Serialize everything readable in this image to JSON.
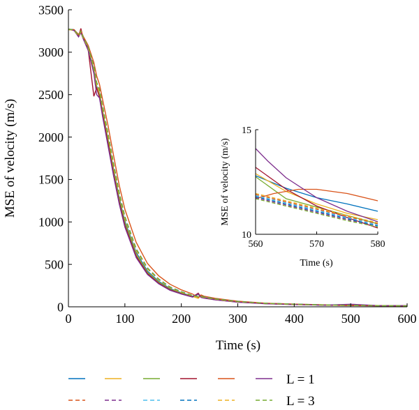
{
  "chart_data": [
    {
      "type": "line",
      "xlabel": "Time (s)",
      "ylabel": "MSE of velocity (m/s)",
      "xlim": [
        0,
        600
      ],
      "ylim": [
        0,
        3500
      ],
      "xticks": [
        "0",
        "100",
        "200",
        "300",
        "400",
        "500",
        "600"
      ],
      "yticks": [
        "0",
        "500",
        "1000",
        "1500",
        "2000",
        "2500",
        "3000",
        "3500"
      ],
      "grid": false,
      "legend_position": "bottom",
      "legend_rows": [
        {
          "label": "L = 1",
          "dashed": false,
          "colors": [
            "#0072BD",
            "#EDB120",
            "#77AC30",
            "#A2142F",
            "#D95319",
            "#7E2F8E"
          ]
        },
        {
          "label": "L = 3",
          "dashed": true,
          "colors": [
            "#D95319",
            "#7E2F8E",
            "#4DBEEE",
            "#0072BD",
            "#EDB120",
            "#77AC30"
          ]
        }
      ],
      "series": [
        {
          "color": "#0072BD",
          "dashed": false,
          "x": [
            0,
            10,
            18,
            22,
            26,
            35,
            45,
            50,
            55,
            60,
            70,
            80,
            90,
            100,
            120,
            140,
            160,
            180,
            200,
            220,
            230,
            235,
            240,
            260,
            280,
            300,
            350,
            400,
            450,
            500,
            550,
            600
          ],
          "y": [
            3270,
            3265,
            3200,
            3250,
            3180,
            3050,
            2800,
            2600,
            2520,
            2330,
            1980,
            1620,
            1280,
            1010,
            640,
            420,
            300,
            215,
            165,
            125,
            150,
            118,
            110,
            90,
            75,
            60,
            40,
            30,
            22,
            17,
            13,
            12
          ]
        },
        {
          "color": "#EDB120",
          "dashed": false,
          "x": [
            0,
            10,
            18,
            22,
            26,
            35,
            45,
            50,
            55,
            60,
            70,
            80,
            90,
            100,
            120,
            140,
            160,
            180,
            200,
            220,
            230,
            235,
            240,
            260,
            280,
            300,
            350,
            400,
            450,
            500,
            550,
            600
          ],
          "y": [
            3265,
            3260,
            3190,
            3240,
            3170,
            3040,
            2790,
            2590,
            2510,
            2320,
            1970,
            1600,
            1260,
            990,
            620,
            405,
            290,
            208,
            160,
            122,
            100,
            135,
            108,
            88,
            72,
            58,
            38,
            29,
            21,
            16,
            13,
            11
          ]
        },
        {
          "color": "#77AC30",
          "dashed": false,
          "x": [
            0,
            10,
            18,
            22,
            26,
            35,
            45,
            50,
            55,
            60,
            70,
            80,
            90,
            100,
            120,
            140,
            160,
            180,
            200,
            220,
            230,
            235,
            240,
            260,
            280,
            300,
            350,
            400,
            450,
            500,
            550,
            600
          ],
          "y": [
            3270,
            3262,
            3195,
            3245,
            3175,
            3045,
            2770,
            2570,
            2490,
            2300,
            1950,
            1580,
            1250,
            980,
            610,
            400,
            285,
            205,
            158,
            120,
            145,
            115,
            106,
            86,
            70,
            57,
            37,
            28,
            20,
            16,
            12,
            11
          ]
        },
        {
          "color": "#A2142F",
          "dashed": false,
          "x": [
            0,
            10,
            18,
            22,
            26,
            35,
            45,
            50,
            55,
            60,
            70,
            80,
            90,
            100,
            120,
            140,
            160,
            180,
            200,
            220,
            230,
            235,
            240,
            260,
            280,
            300,
            350,
            400,
            450,
            500,
            550,
            600
          ],
          "y": [
            3268,
            3258,
            3185,
            3280,
            3165,
            3030,
            2480,
            2580,
            2470,
            2280,
            1930,
            1560,
            1230,
            960,
            595,
            390,
            278,
            200,
            154,
            117,
            160,
            112,
            104,
            84,
            69,
            55,
            36,
            27,
            20,
            15,
            12,
            10
          ]
        },
        {
          "color": "#D95319",
          "dashed": false,
          "x": [
            0,
            10,
            18,
            22,
            26,
            35,
            45,
            50,
            55,
            60,
            70,
            80,
            90,
            100,
            120,
            140,
            160,
            180,
            200,
            220,
            230,
            235,
            240,
            260,
            280,
            300,
            350,
            400,
            450,
            500,
            550,
            600
          ],
          "y": [
            3272,
            3266,
            3210,
            3255,
            3190,
            3080,
            2880,
            2720,
            2620,
            2460,
            2140,
            1780,
            1430,
            1150,
            760,
            510,
            365,
            265,
            200,
            150,
            110,
            140,
            125,
            100,
            82,
            66,
            43,
            32,
            24,
            18,
            14,
            12
          ]
        },
        {
          "color": "#7E2F8E",
          "dashed": false,
          "x": [
            0,
            10,
            18,
            22,
            26,
            35,
            45,
            50,
            55,
            60,
            70,
            80,
            90,
            100,
            120,
            140,
            160,
            180,
            200,
            220,
            230,
            235,
            240,
            260,
            280,
            300,
            350,
            400,
            450,
            500,
            550,
            600
          ],
          "y": [
            3270,
            3255,
            3180,
            3230,
            3160,
            3020,
            2750,
            2500,
            2460,
            2260,
            1900,
            1540,
            1210,
            940,
            580,
            380,
            270,
            195,
            150,
            114,
            150,
            110,
            102,
            82,
            68,
            54,
            35,
            26,
            19,
            30,
            14,
            13
          ]
        },
        {
          "color": "#D95319",
          "dashed": true,
          "x": [
            0,
            10,
            18,
            22,
            26,
            35,
            45,
            50,
            55,
            60,
            70,
            80,
            90,
            100,
            120,
            140,
            160,
            180,
            200,
            220,
            230,
            235,
            240,
            260,
            280,
            300,
            350,
            400,
            450,
            500,
            550,
            600
          ],
          "y": [
            3270,
            3263,
            3195,
            3245,
            3178,
            3060,
            2830,
            2640,
            2560,
            2380,
            2040,
            1680,
            1340,
            1060,
            680,
            455,
            325,
            232,
            176,
            133,
            118,
            125,
            116,
            93,
            77,
            62,
            41,
            30,
            22,
            17,
            13,
            11
          ]
        },
        {
          "color": "#7E2F8E",
          "dashed": true,
          "x": [
            0,
            10,
            18,
            22,
            26,
            35,
            45,
            50,
            55,
            60,
            70,
            80,
            90,
            100,
            120,
            140,
            160,
            180,
            200,
            220,
            230,
            235,
            240,
            260,
            280,
            300,
            350,
            400,
            450,
            500,
            550,
            600
          ],
          "y": [
            3268,
            3261,
            3192,
            3242,
            3175,
            3055,
            2820,
            2630,
            2550,
            2370,
            2030,
            1670,
            1330,
            1050,
            670,
            448,
            320,
            228,
            173,
            131,
            116,
            122,
            113,
            91,
            75,
            61,
            40,
            30,
            22,
            16,
            13,
            11
          ]
        },
        {
          "color": "#4DBEEE",
          "dashed": true,
          "x": [
            0,
            10,
            18,
            22,
            26,
            35,
            45,
            50,
            55,
            60,
            70,
            80,
            90,
            100,
            120,
            140,
            160,
            180,
            200,
            220,
            230,
            235,
            240,
            260,
            280,
            300,
            350,
            400,
            450,
            500,
            550,
            600
          ],
          "y": [
            3269,
            3262,
            3194,
            3244,
            3177,
            3058,
            2825,
            2635,
            2555,
            2375,
            2035,
            1675,
            1335,
            1055,
            675,
            452,
            322,
            230,
            175,
            132,
            117,
            124,
            115,
            92,
            76,
            62,
            41,
            30,
            22,
            17,
            13,
            11
          ]
        },
        {
          "color": "#0072BD",
          "dashed": true,
          "x": [
            0,
            10,
            18,
            22,
            26,
            35,
            45,
            50,
            55,
            60,
            70,
            80,
            90,
            100,
            120,
            140,
            160,
            180,
            200,
            220,
            230,
            235,
            240,
            260,
            280,
            300,
            350,
            400,
            450,
            500,
            550,
            600
          ],
          "y": [
            3271,
            3264,
            3197,
            3247,
            3180,
            3062,
            2835,
            2645,
            2565,
            2385,
            2045,
            1685,
            1345,
            1065,
            685,
            458,
            327,
            234,
            178,
            134,
            119,
            126,
            117,
            94,
            78,
            63,
            41,
            31,
            23,
            17,
            13,
            11
          ]
        },
        {
          "color": "#EDB120",
          "dashed": true,
          "x": [
            0,
            10,
            18,
            22,
            26,
            35,
            45,
            50,
            55,
            60,
            70,
            80,
            90,
            100,
            120,
            140,
            160,
            180,
            200,
            220,
            230,
            235,
            240,
            260,
            280,
            300,
            350,
            400,
            450,
            500,
            550,
            600
          ],
          "y": [
            3267,
            3260,
            3190,
            3240,
            3173,
            3052,
            2815,
            2625,
            2545,
            2365,
            2025,
            1665,
            1325,
            1045,
            665,
            445,
            318,
            226,
            172,
            130,
            115,
            121,
            112,
            90,
            74,
            60,
            40,
            29,
            21,
            16,
            13,
            11
          ]
        },
        {
          "color": "#77AC30",
          "dashed": true,
          "x": [
            0,
            10,
            18,
            22,
            26,
            35,
            45,
            50,
            55,
            60,
            70,
            80,
            90,
            100,
            120,
            140,
            160,
            180,
            200,
            220,
            230,
            235,
            240,
            260,
            280,
            300,
            350,
            400,
            450,
            500,
            550,
            600
          ],
          "y": [
            3270,
            3263,
            3196,
            3246,
            3179,
            3061,
            2832,
            2642,
            2562,
            2382,
            2042,
            1682,
            1342,
            1062,
            682,
            455,
            325,
            232,
            176,
            133,
            118,
            124,
            115,
            93,
            77,
            62,
            41,
            30,
            22,
            17,
            13,
            11
          ]
        }
      ]
    },
    {
      "type": "line",
      "inset": true,
      "xlabel": "Time (s)",
      "ylabel": "MSE of velocity (m/s)",
      "xlim": [
        560,
        580
      ],
      "ylim": [
        10,
        15
      ],
      "xticks": [
        "560",
        "570",
        "580"
      ],
      "yticks": [
        "10",
        "15"
      ],
      "series": [
        {
          "color": "#0072BD",
          "dashed": false,
          "x": [
            560,
            565,
            570,
            575,
            580
          ],
          "y": [
            12.8,
            12.2,
            11.75,
            11.45,
            11.1
          ]
        },
        {
          "color": "#EDB120",
          "dashed": false,
          "x": [
            560,
            565,
            570,
            575,
            580
          ],
          "y": [
            12.9,
            12.05,
            11.45,
            11.0,
            10.7
          ]
        },
        {
          "color": "#77AC30",
          "dashed": false,
          "x": [
            560,
            565,
            570,
            575,
            580
          ],
          "y": [
            12.75,
            11.7,
            11.3,
            10.9,
            10.5
          ]
        },
        {
          "color": "#A2142F",
          "dashed": false,
          "x": [
            560,
            565,
            570,
            575,
            580
          ],
          "y": [
            13.2,
            12.15,
            11.35,
            10.8,
            10.3
          ]
        },
        {
          "color": "#D95319",
          "dashed": false,
          "x": [
            560,
            563,
            567,
            570,
            575,
            580
          ],
          "y": [
            11.7,
            11.95,
            12.15,
            12.15,
            11.95,
            11.6
          ]
        },
        {
          "color": "#7E2F8E",
          "dashed": false,
          "x": [
            560,
            562,
            565,
            570,
            575,
            580
          ],
          "y": [
            14.1,
            13.5,
            12.7,
            11.75,
            11.1,
            10.6
          ]
        },
        {
          "color": "#D95319",
          "dashed": true,
          "x": [
            560,
            565,
            570,
            575,
            580
          ],
          "y": [
            11.9,
            11.55,
            11.2,
            10.85,
            10.5
          ]
        },
        {
          "color": "#7E2F8E",
          "dashed": true,
          "x": [
            560,
            565,
            570,
            575,
            580
          ],
          "y": [
            11.75,
            11.4,
            11.05,
            10.7,
            10.4
          ]
        },
        {
          "color": "#4DBEEE",
          "dashed": true,
          "x": [
            560,
            565,
            570,
            575,
            580
          ],
          "y": [
            11.85,
            11.5,
            11.15,
            10.8,
            10.45
          ]
        },
        {
          "color": "#0072BD",
          "dashed": true,
          "x": [
            560,
            565,
            570,
            575,
            580
          ],
          "y": [
            11.8,
            11.45,
            11.1,
            10.75,
            10.4
          ]
        },
        {
          "color": "#EDB120",
          "dashed": true,
          "x": [
            560,
            565,
            570,
            575,
            580
          ],
          "y": [
            11.95,
            11.6,
            11.25,
            10.9,
            10.55
          ]
        },
        {
          "color": "#77AC30",
          "dashed": true,
          "x": [
            560,
            565,
            570,
            575,
            580
          ],
          "y": [
            11.7,
            11.35,
            11.0,
            10.65,
            10.35
          ]
        }
      ]
    }
  ]
}
